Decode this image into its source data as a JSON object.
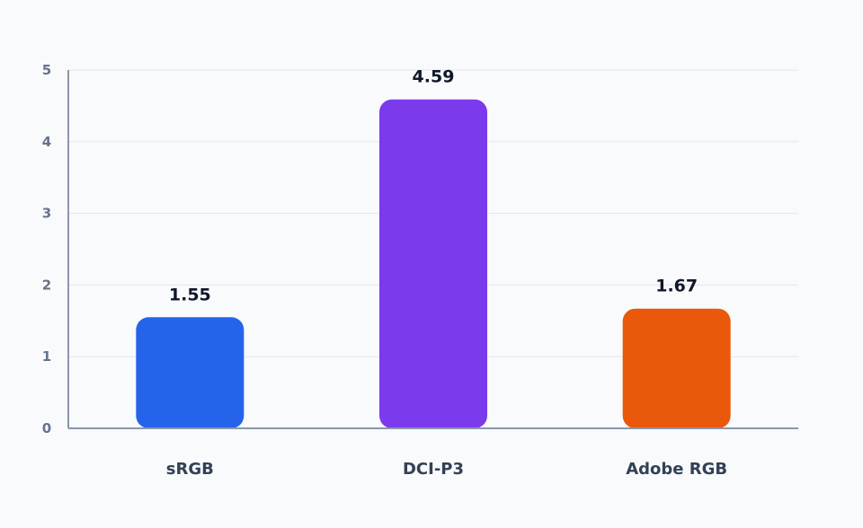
{
  "chart_data": {
    "type": "bar",
    "categories": [
      "sRGB",
      "DCI-P3",
      "Adobe RGB"
    ],
    "values": [
      1.55,
      4.59,
      1.67
    ],
    "value_labels": [
      "1.55",
      "4.59",
      "1.67"
    ],
    "colors": [
      "#2563eb",
      "#7c3aed",
      "#ea580c"
    ],
    "yticks": [
      "0",
      "1",
      "2",
      "3",
      "4",
      "5"
    ],
    "ylim": [
      0,
      5
    ],
    "grid": true,
    "title": "",
    "xlabel": "",
    "ylabel": ""
  }
}
